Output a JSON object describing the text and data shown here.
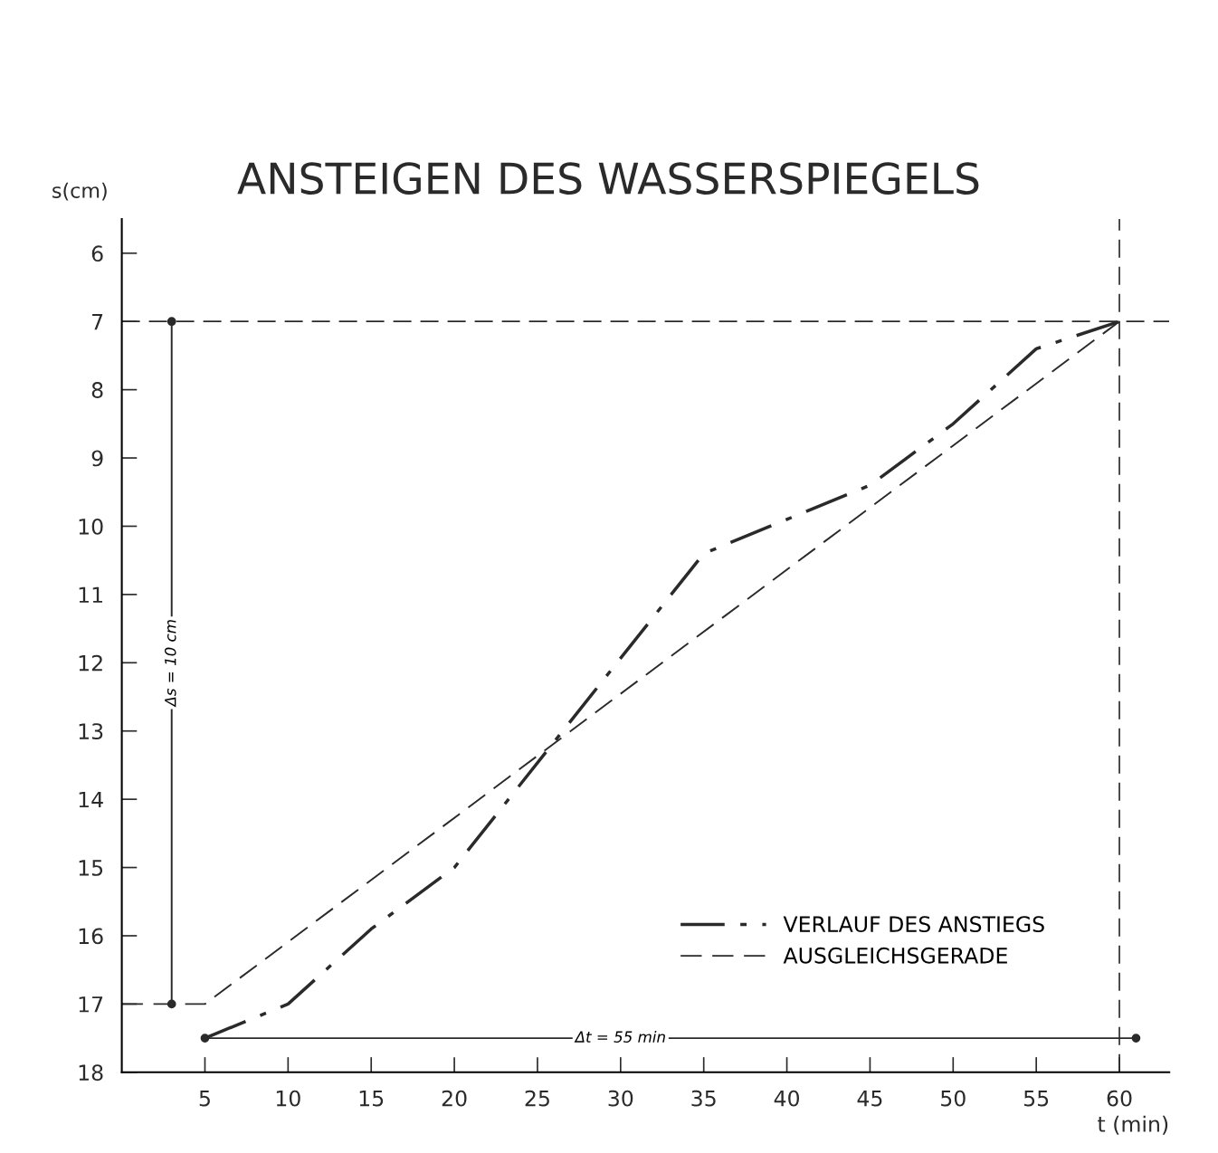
{
  "chart_data": {
    "type": "line",
    "title": "ANSTEIGEN DES WASSERSPIEGELS",
    "xlabel": "t (min)",
    "ylabel": "s(cm)",
    "xlim": [
      0,
      63
    ],
    "xticks": [
      5,
      10,
      15,
      20,
      25,
      30,
      35,
      40,
      45,
      50,
      55,
      60
    ],
    "ylim": [
      18,
      5.5
    ],
    "yticks": [
      6,
      7,
      8,
      9,
      10,
      11,
      12,
      13,
      14,
      15,
      16,
      17,
      18
    ],
    "grid": false,
    "legend": "bottom right",
    "series": [
      {
        "name": "VERLAUF DES ANSTIEGS",
        "color": "#2a2a2a",
        "line_style": "dashdot",
        "x": [
          5,
          10,
          15,
          20,
          35,
          40,
          45,
          50,
          55,
          60
        ],
        "values": [
          17.5,
          17.0,
          15.9,
          15.0,
          10.4,
          9.9,
          9.4,
          8.5,
          7.4,
          7.0
        ]
      },
      {
        "name": "AUSGLEICHSGERADE",
        "color": "#2a2a2a",
        "line_style": "dashed",
        "x": [
          0,
          5,
          60
        ],
        "values": [
          17,
          17,
          7
        ]
      },
      {
        "color": "#2a2a2a",
        "line_style": "solid",
        "marker": "circle",
        "x": [
          3,
          3
        ],
        "values": [
          7,
          17
        ]
      },
      {
        "color": "#2a2a2a",
        "line_style": "solid",
        "marker": "circle",
        "x": [
          5,
          61
        ],
        "values": [
          17.5,
          17.5
        ]
      }
    ],
    "ref_lines": [
      {
        "axis": "y",
        "value": 7,
        "label": null,
        "line_style": "dashed",
        "color": "#2a2a2a"
      },
      {
        "axis": "x",
        "value": 60,
        "label": null,
        "line_style": "dashed",
        "color": "#2a2a2a"
      }
    ],
    "annotations": [
      {
        "text": "Δs = 10 cm",
        "x": 3,
        "y": 12
      },
      {
        "text": "Δt = 55 min",
        "x": 30,
        "y": 17.5
      }
    ]
  }
}
